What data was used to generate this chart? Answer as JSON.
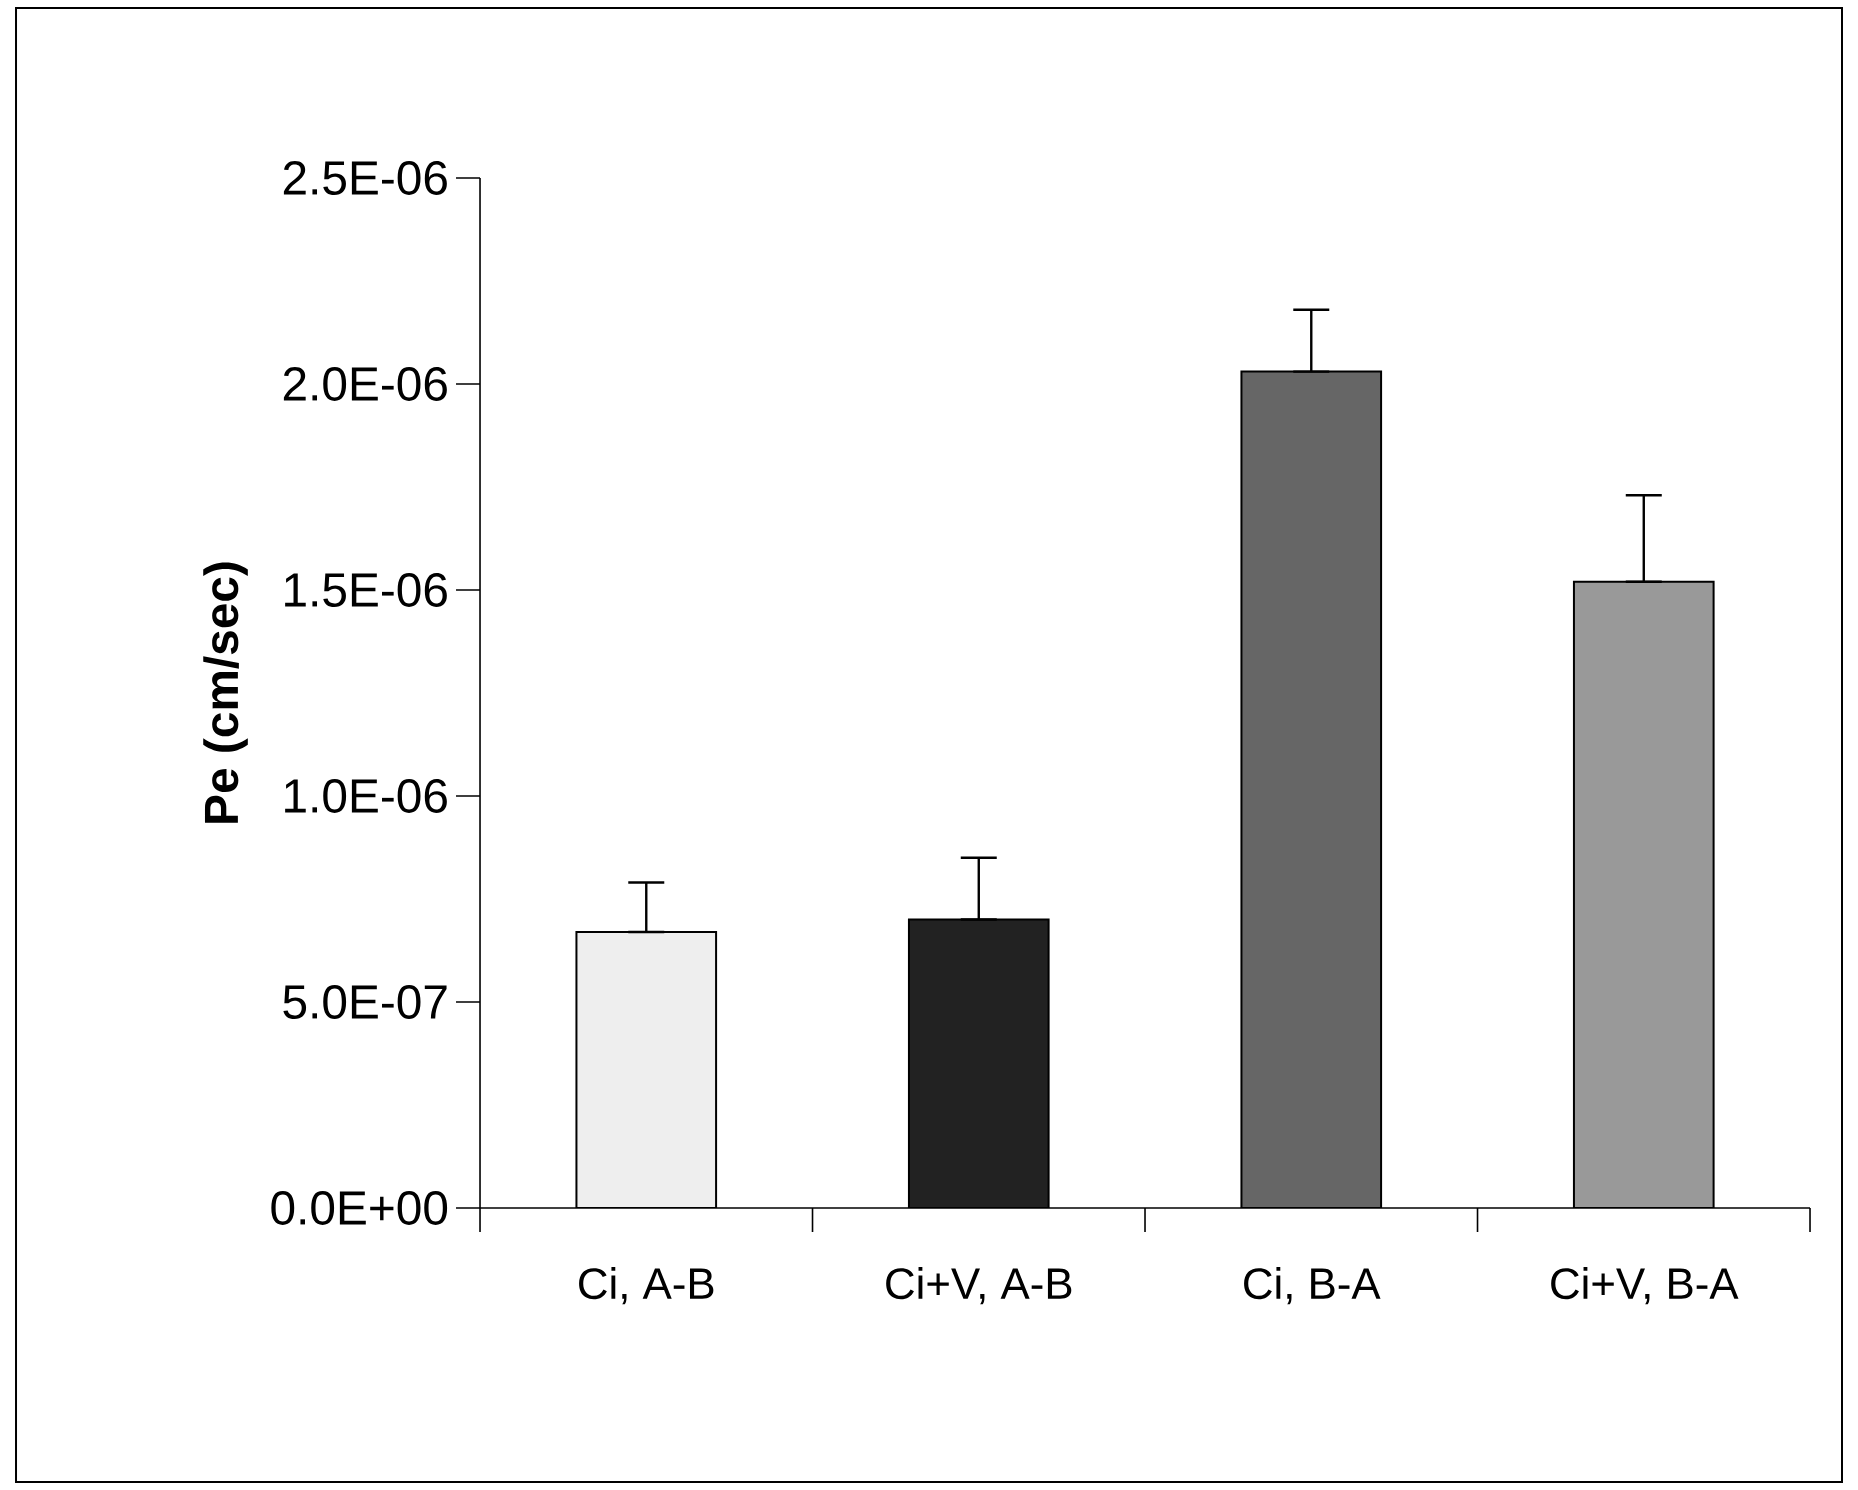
{
  "chart_data": {
    "type": "bar",
    "ylabel": "Pe (cm/sec)",
    "categories": [
      "Ci, A-B",
      "Ci+V, A-B",
      "Ci, B-A",
      "Ci+V, B-A"
    ],
    "values": [
      6.7e-07,
      7e-07,
      2.03e-06,
      1.52e-06
    ],
    "errors": [
      [
        6.7e-07,
        7.9e-07
      ],
      [
        7e-07,
        8.5e-07
      ],
      [
        2.03e-06,
        2.18e-06
      ],
      [
        1.52e-06,
        1.73e-06
      ]
    ],
    "colors": [
      "#eeeeee",
      "#222222",
      "#666666",
      "#999999"
    ],
    "ylim": [
      0,
      2.5e-06
    ],
    "yticks": [
      {
        "value": 0,
        "label": "0.0E+00"
      },
      {
        "value": 5e-07,
        "label": "5.0E-07"
      },
      {
        "value": 1e-06,
        "label": "1.0E-06"
      },
      {
        "value": 1.5e-06,
        "label": "1.5E-06"
      },
      {
        "value": 2e-06,
        "label": "2.0E-06"
      },
      {
        "value": 2.5e-06,
        "label": "2.5E-06"
      }
    ],
    "grid": false
  }
}
